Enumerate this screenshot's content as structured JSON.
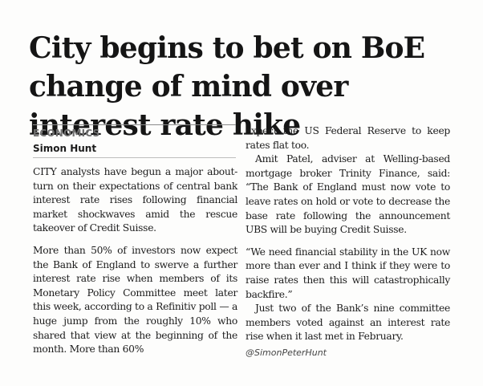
{
  "article": {
    "headline": "City begins to bet on BoE change of mind over interest rate hike",
    "section": "ECONOMICS",
    "byline": "Simon Hunt",
    "left_column": {
      "p1": "CITY analysts have begun a major about-turn on their expectations of central bank interest rate rises following financial market shockwaves amid the rescue takeover of Credit Suisse.",
      "p2": "More than 50% of investors now expect the Bank of England to swerve a further interest rate rise when members of its Monetary Policy Committee meet later this week, according to a Refinitiv poll — a huge jump from the roughly 10% who shared that view at the beginning of the month. More than 60%"
    },
    "right_column": {
      "p1": "expect the US Federal Reserve to keep rates flat too.",
      "p2": "Amit Patel, adviser at Welling-based mortgage broker Trinity Finance, said: “The Bank of England must now vote to leave rates on hold or vote to decrease the base rate following the announcement UBS will be buying Credit Suisse.",
      "p3": "“We need financial stability in the UK now more than ever and I think if they were to raise rates then this will catastrophically backfire.”",
      "p4": "Just two of the Bank’s nine committee members voted against an interest rate rise when it last met in February."
    },
    "twitter_handle": "@SimonPeterHunt"
  }
}
